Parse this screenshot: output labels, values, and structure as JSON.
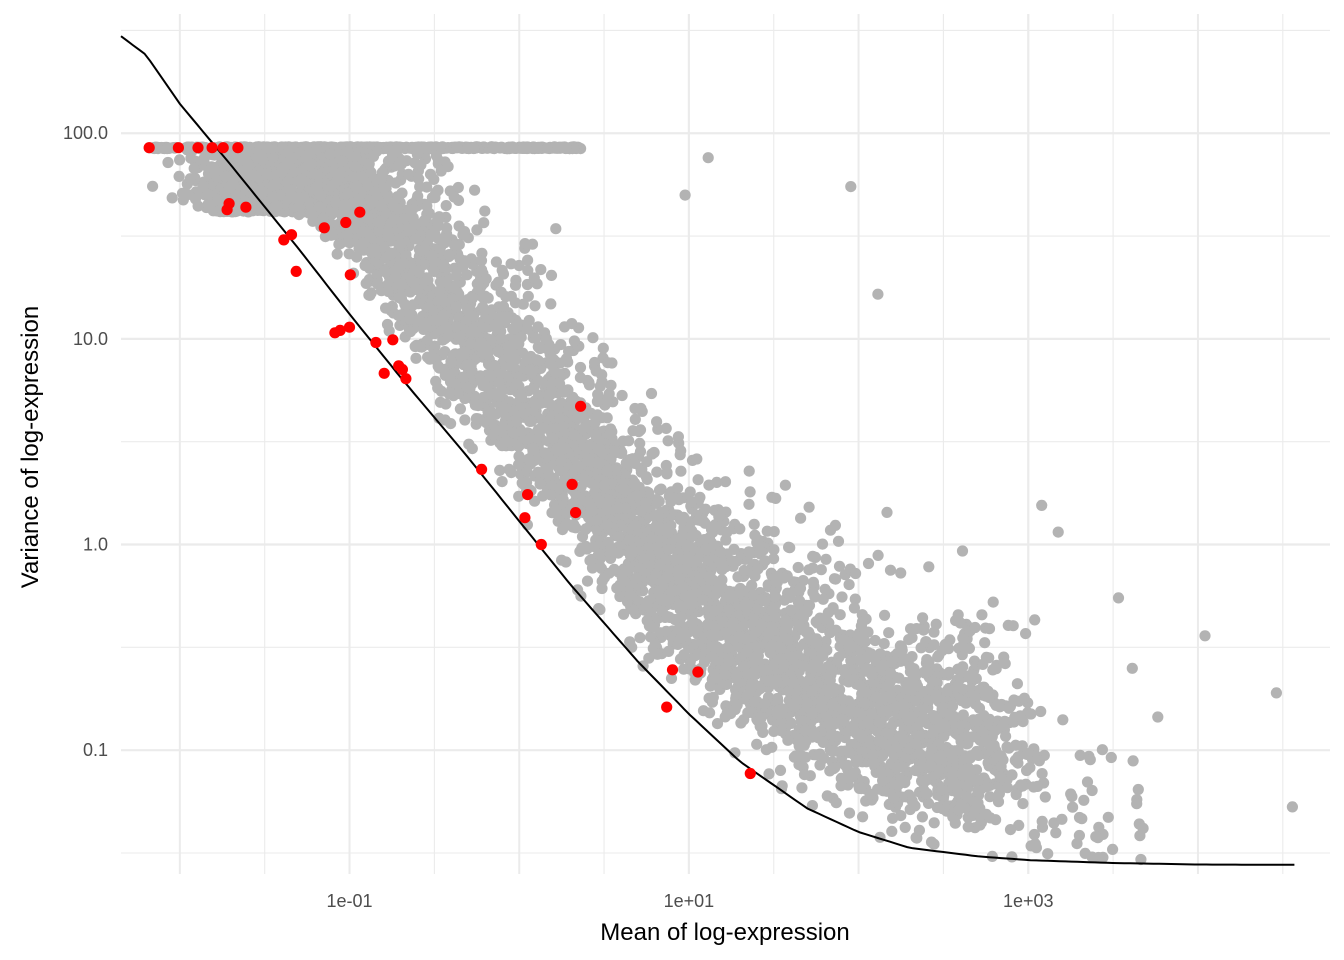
{
  "chart_data": {
    "type": "scatter",
    "title": "",
    "xlabel": "Mean of log-expression",
    "ylabel": "Variance of log-expression",
    "x_scale": "log10",
    "y_scale": "log10",
    "xlim": [
      0.0045,
      60000
    ],
    "ylim": [
      0.025,
      380
    ],
    "x_ticks": [
      {
        "value": 0.1,
        "label": "1e-01"
      },
      {
        "value": 10,
        "label": "1e+01"
      },
      {
        "value": 1000,
        "label": "1e+03"
      }
    ],
    "y_ticks": [
      {
        "value": 0.1,
        "label": "0.1"
      },
      {
        "value": 1,
        "label": "1.0"
      },
      {
        "value": 10,
        "label": "10.0"
      },
      {
        "value": 100,
        "label": "100.0"
      }
    ],
    "grid": true,
    "background": "#ffffff",
    "colors": {
      "background_points": "#b3b3b3",
      "highlight_points": "#ff0000",
      "trend": "#000000",
      "grid": "#ebebeb"
    },
    "highlighted_points": [
      {
        "x": 0.0066,
        "y": 85
      },
      {
        "x": 0.0098,
        "y": 85
      },
      {
        "x": 0.0128,
        "y": 85
      },
      {
        "x": 0.0155,
        "y": 85
      },
      {
        "x": 0.018,
        "y": 85
      },
      {
        "x": 0.022,
        "y": 85
      },
      {
        "x": 0.019,
        "y": 42.5
      },
      {
        "x": 0.0195,
        "y": 45.5
      },
      {
        "x": 0.0245,
        "y": 43.7
      },
      {
        "x": 0.041,
        "y": 30.3
      },
      {
        "x": 0.0455,
        "y": 32.1
      },
      {
        "x": 0.0485,
        "y": 21.3
      },
      {
        "x": 0.071,
        "y": 34.7
      },
      {
        "x": 0.095,
        "y": 36.8
      },
      {
        "x": 0.101,
        "y": 20.5
      },
      {
        "x": 0.115,
        "y": 41.3
      },
      {
        "x": 0.082,
        "y": 10.7
      },
      {
        "x": 0.088,
        "y": 11.0
      },
      {
        "x": 0.1,
        "y": 11.4
      },
      {
        "x": 0.143,
        "y": 9.6
      },
      {
        "x": 0.16,
        "y": 6.8
      },
      {
        "x": 0.18,
        "y": 9.9
      },
      {
        "x": 0.195,
        "y": 7.4
      },
      {
        "x": 0.205,
        "y": 7.1
      },
      {
        "x": 0.215,
        "y": 6.4
      },
      {
        "x": 0.6,
        "y": 2.32
      },
      {
        "x": 1.12,
        "y": 1.75
      },
      {
        "x": 1.08,
        "y": 1.35
      },
      {
        "x": 1.35,
        "y": 1.0
      },
      {
        "x": 2.3,
        "y": 4.7
      },
      {
        "x": 2.05,
        "y": 1.96
      },
      {
        "x": 2.15,
        "y": 1.43
      },
      {
        "x": 7.4,
        "y": 0.162
      },
      {
        "x": 8.0,
        "y": 0.246
      },
      {
        "x": 11.3,
        "y": 0.24
      },
      {
        "x": 23.0,
        "y": 0.077
      }
    ],
    "background_points_generated": {
      "count": 5400,
      "description_of_cloud": "decreasing band of genes above the trend line",
      "outliers": [
        {
          "x": 13,
          "y": 76
        },
        {
          "x": 90,
          "y": 55
        },
        {
          "x": 9.5,
          "y": 50
        },
        {
          "x": 130,
          "y": 16.5
        },
        {
          "x": 1200,
          "y": 1.55
        },
        {
          "x": 1500,
          "y": 1.15
        },
        {
          "x": 11000,
          "y": 0.36
        },
        {
          "x": 29000,
          "y": 0.19
        },
        {
          "x": 36000,
          "y": 0.053
        },
        {
          "x": 5800,
          "y": 0.145
        },
        {
          "x": 1100,
          "y": 0.035
        },
        {
          "x": 2500,
          "y": 0.038
        },
        {
          "x": 4100,
          "y": 0.25
        },
        {
          "x": 3400,
          "y": 0.55
        },
        {
          "x": 7.5,
          "y": 0.7
        },
        {
          "x": 5.8,
          "y": 0.28
        }
      ]
    },
    "trend_line": [
      {
        "x": 0.003,
        "y": 380
      },
      {
        "x": 0.0063,
        "y": 241
      },
      {
        "x": 0.01,
        "y": 139
      },
      {
        "x": 0.02,
        "y": 70
      },
      {
        "x": 0.05,
        "y": 27.5
      },
      {
        "x": 0.1,
        "y": 13.2
      },
      {
        "x": 0.2,
        "y": 6.5
      },
      {
        "x": 0.5,
        "y": 2.65
      },
      {
        "x": 1,
        "y": 1.3
      },
      {
        "x": 2,
        "y": 0.64
      },
      {
        "x": 5,
        "y": 0.27
      },
      {
        "x": 10,
        "y": 0.15
      },
      {
        "x": 20,
        "y": 0.088
      },
      {
        "x": 50,
        "y": 0.052
      },
      {
        "x": 100,
        "y": 0.04
      },
      {
        "x": 200,
        "y": 0.0335
      },
      {
        "x": 500,
        "y": 0.0305
      },
      {
        "x": 1000,
        "y": 0.0292
      },
      {
        "x": 3000,
        "y": 0.0283
      },
      {
        "x": 10000,
        "y": 0.0278
      },
      {
        "x": 37000,
        "y": 0.0277
      }
    ]
  }
}
